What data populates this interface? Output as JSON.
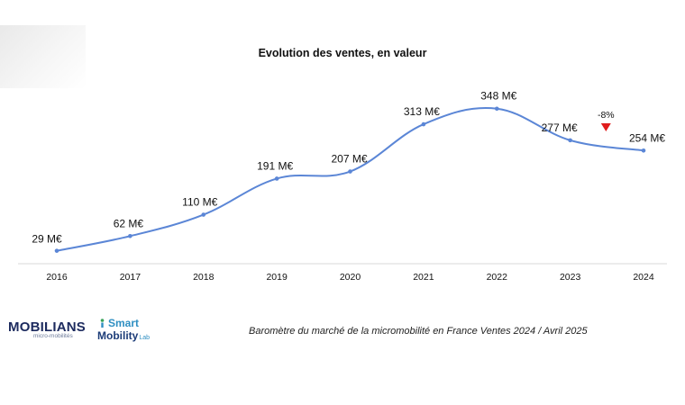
{
  "chart_data": {
    "type": "line",
    "title": "Evolution des ventes, en valeur",
    "categories": [
      "2016",
      "2017",
      "2018",
      "2019",
      "2020",
      "2021",
      "2022",
      "2023",
      "2024"
    ],
    "series": [
      {
        "values": [
          29,
          62,
          110,
          191,
          207,
          313,
          348,
          277,
          254
        ],
        "data_labels": [
          "29 M€",
          "62 M€",
          "110 M€",
          "191 M€",
          "207 M€",
          "313 M€",
          "348 M€",
          "277 M€",
          "254 M€"
        ],
        "color": "#5b86d6"
      }
    ],
    "annotation": {
      "text": "-8%",
      "between": [
        "2023",
        "2024"
      ],
      "color": "#e01c1c",
      "marker": "down-triangle"
    },
    "ylim": [
      0,
      400
    ],
    "grid": false,
    "legend": "none"
  },
  "footer": {
    "source_text": "Baromètre du marché de la micromobilité en France Ventes 2024 / Avril 2025"
  },
  "logos": {
    "mobilians": {
      "name": "MOBILIANS",
      "sub": "micro-mobilités",
      "color": "#1c2a5e"
    },
    "smart_mobility_lab": {
      "line1": "Smart",
      "line2": "Mobility",
      "lab": "Lab",
      "color": "#2f8fc2"
    }
  }
}
